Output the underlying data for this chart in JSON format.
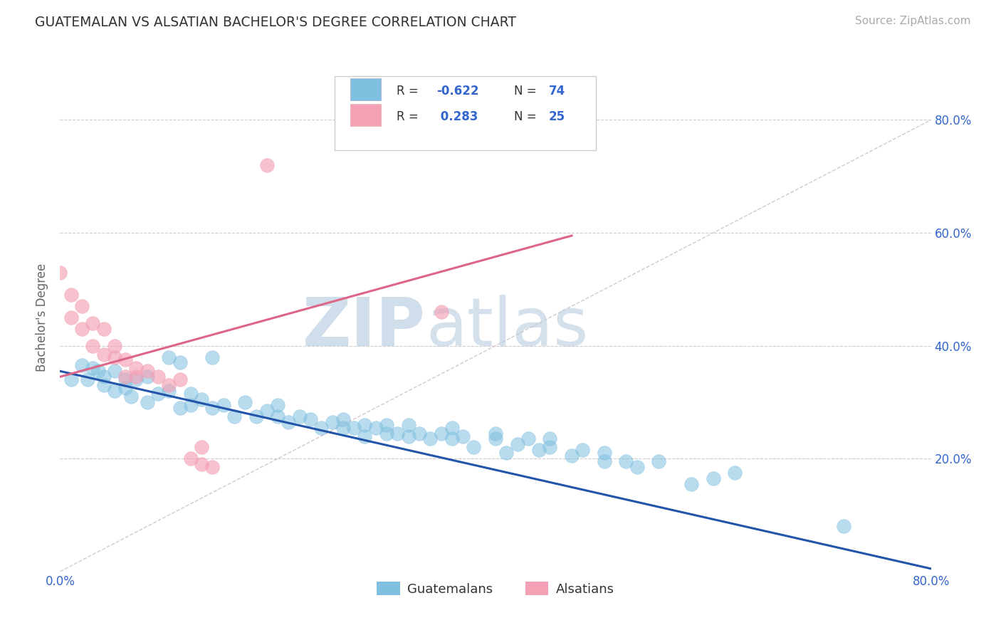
{
  "title": "GUATEMALAN VS ALSATIAN BACHELOR'S DEGREE CORRELATION CHART",
  "source": "Source: ZipAtlas.com",
  "ylabel": "Bachelor's Degree",
  "xlim": [
    0.0,
    0.8
  ],
  "ylim": [
    0.0,
    0.9
  ],
  "xticks": [
    0.0,
    0.1,
    0.2,
    0.3,
    0.4,
    0.5,
    0.6,
    0.7,
    0.8
  ],
  "xticklabels": [
    "0.0%",
    "",
    "",
    "",
    "",
    "",
    "",
    "",
    "80.0%"
  ],
  "ytick_positions": [
    0.0,
    0.2,
    0.4,
    0.6,
    0.8
  ],
  "yticklabels_right": [
    "",
    "20.0%",
    "40.0%",
    "60.0%",
    "80.0%"
  ],
  "blue_color": "#7fbfdf",
  "pink_color": "#f4a0b5",
  "blue_line_color": "#2255aa",
  "pink_line_color": "#dd6688",
  "ref_line_color": "#ccbbbb",
  "watermark_zip": "ZIP",
  "watermark_atlas": "atlas",
  "legend_label_blue": "Guatemalans",
  "legend_label_pink": "Alsatians",
  "blue_scatter": [
    [
      0.01,
      0.34
    ],
    [
      0.02,
      0.365
    ],
    [
      0.025,
      0.34
    ],
    [
      0.03,
      0.36
    ],
    [
      0.035,
      0.355
    ],
    [
      0.04,
      0.345
    ],
    [
      0.04,
      0.33
    ],
    [
      0.05,
      0.355
    ],
    [
      0.05,
      0.32
    ],
    [
      0.06,
      0.325
    ],
    [
      0.06,
      0.34
    ],
    [
      0.065,
      0.31
    ],
    [
      0.07,
      0.34
    ],
    [
      0.08,
      0.345
    ],
    [
      0.08,
      0.3
    ],
    [
      0.09,
      0.315
    ],
    [
      0.1,
      0.38
    ],
    [
      0.1,
      0.32
    ],
    [
      0.11,
      0.37
    ],
    [
      0.11,
      0.29
    ],
    [
      0.12,
      0.315
    ],
    [
      0.12,
      0.295
    ],
    [
      0.13,
      0.305
    ],
    [
      0.14,
      0.38
    ],
    [
      0.14,
      0.29
    ],
    [
      0.15,
      0.295
    ],
    [
      0.16,
      0.275
    ],
    [
      0.17,
      0.3
    ],
    [
      0.18,
      0.275
    ],
    [
      0.19,
      0.285
    ],
    [
      0.2,
      0.275
    ],
    [
      0.2,
      0.295
    ],
    [
      0.21,
      0.265
    ],
    [
      0.22,
      0.275
    ],
    [
      0.23,
      0.27
    ],
    [
      0.24,
      0.255
    ],
    [
      0.25,
      0.265
    ],
    [
      0.26,
      0.27
    ],
    [
      0.26,
      0.255
    ],
    [
      0.27,
      0.255
    ],
    [
      0.28,
      0.26
    ],
    [
      0.28,
      0.24
    ],
    [
      0.29,
      0.255
    ],
    [
      0.3,
      0.245
    ],
    [
      0.3,
      0.26
    ],
    [
      0.31,
      0.245
    ],
    [
      0.32,
      0.26
    ],
    [
      0.32,
      0.24
    ],
    [
      0.33,
      0.245
    ],
    [
      0.34,
      0.235
    ],
    [
      0.35,
      0.245
    ],
    [
      0.36,
      0.255
    ],
    [
      0.36,
      0.235
    ],
    [
      0.37,
      0.24
    ],
    [
      0.38,
      0.22
    ],
    [
      0.4,
      0.235
    ],
    [
      0.4,
      0.245
    ],
    [
      0.41,
      0.21
    ],
    [
      0.42,
      0.225
    ],
    [
      0.43,
      0.235
    ],
    [
      0.44,
      0.215
    ],
    [
      0.45,
      0.22
    ],
    [
      0.45,
      0.235
    ],
    [
      0.47,
      0.205
    ],
    [
      0.48,
      0.215
    ],
    [
      0.5,
      0.195
    ],
    [
      0.5,
      0.21
    ],
    [
      0.52,
      0.195
    ],
    [
      0.53,
      0.185
    ],
    [
      0.55,
      0.195
    ],
    [
      0.58,
      0.155
    ],
    [
      0.6,
      0.165
    ],
    [
      0.62,
      0.175
    ],
    [
      0.72,
      0.08
    ]
  ],
  "pink_scatter": [
    [
      0.0,
      0.53
    ],
    [
      0.01,
      0.49
    ],
    [
      0.01,
      0.45
    ],
    [
      0.02,
      0.47
    ],
    [
      0.02,
      0.43
    ],
    [
      0.03,
      0.44
    ],
    [
      0.03,
      0.4
    ],
    [
      0.04,
      0.43
    ],
    [
      0.04,
      0.385
    ],
    [
      0.05,
      0.4
    ],
    [
      0.05,
      0.38
    ],
    [
      0.06,
      0.375
    ],
    [
      0.06,
      0.345
    ],
    [
      0.07,
      0.36
    ],
    [
      0.07,
      0.345
    ],
    [
      0.08,
      0.355
    ],
    [
      0.09,
      0.345
    ],
    [
      0.1,
      0.33
    ],
    [
      0.11,
      0.34
    ],
    [
      0.12,
      0.2
    ],
    [
      0.13,
      0.19
    ],
    [
      0.13,
      0.22
    ],
    [
      0.14,
      0.185
    ],
    [
      0.19,
      0.72
    ],
    [
      0.35,
      0.46
    ]
  ],
  "blue_line_x": [
    0.0,
    0.8
  ],
  "blue_line_y": [
    0.355,
    0.005
  ],
  "pink_line_x": [
    0.0,
    0.47
  ],
  "pink_line_y": [
    0.345,
    0.595
  ],
  "ref_line_x": [
    0.0,
    0.8
  ],
  "ref_line_y": [
    0.0,
    0.8
  ],
  "grid_color": "#cccccc",
  "title_color": "#333333",
  "axis_label_color": "#666666",
  "tick_color_blue": "#3366cc",
  "background_color": "#ffffff"
}
